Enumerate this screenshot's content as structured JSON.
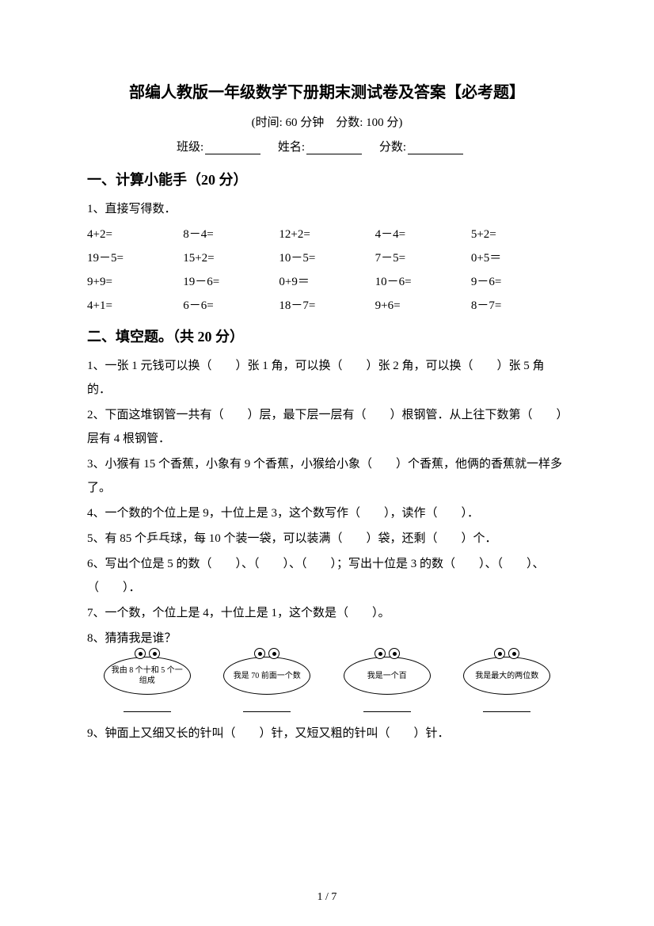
{
  "title": "部编人教版一年级数学下册期末测试卷及答案【必考题】",
  "subtitle": "(时间: 60 分钟　分数: 100 分)",
  "info": {
    "class_label": "班级:",
    "name_label": "姓名:",
    "score_label": "分数:"
  },
  "section1": {
    "header": "一、计算小能手（20 分）",
    "q1_label": "1、直接写得数．",
    "rows": [
      [
        "4+2=",
        "8－4=",
        "12+2=",
        "4－4=",
        "5+2="
      ],
      [
        "19－5=",
        "15+2=",
        "10－5=",
        "7－5=",
        "0+5＝"
      ],
      [
        "9+9=",
        "19－6=",
        "0+9＝",
        "10－6=",
        "9－6="
      ],
      [
        "4+1=",
        "6－6=",
        "18－7=",
        "9+6=",
        "8－7="
      ]
    ]
  },
  "section2": {
    "header": "二、填空题。（共 20 分）",
    "q1": "1、一张 1 元钱可以换（　　）张 1 角，可以换（　　）张 2 角，可以换（　　）张 5 角的．",
    "q2": "2、下面这堆钢管一共有（　　）层，最下层一层有（　　）根钢管．从上往下数第（　　）层有 4 根钢管．",
    "q3": "3、小猴有 15 个香蕉，小象有 9 个香蕉，小猴给小象（　　）个香蕉，他俩的香蕉就一样多了。",
    "q4": "4、一个数的个位上是 9，十位上是 3，这个数写作（　　），读作（　　）．",
    "q5": "5、有 85 个乒乓球，每 10 个装一袋，可以装满（　　）袋，还剩（　　）个．",
    "q6": "6、写出个位是 5 的数（　　）、（　　）、（　　）；写出十位是 3 的数（　　）、（　　）、（　　）．",
    "q7": "7、一个数，个位上是 4，十位上是 1，这个数是（　　）。",
    "q8": "8、猜猜我是谁？",
    "clouds": [
      "我由 8 个十和 5 个一组成",
      "我是 70 前面一个数",
      "我是一个百",
      "我是最大的两位数"
    ],
    "q9": "9、钟面上又细又长的针叫（　　）针，又短又粗的针叫（　　）针．"
  },
  "page_num": "1 / 7"
}
